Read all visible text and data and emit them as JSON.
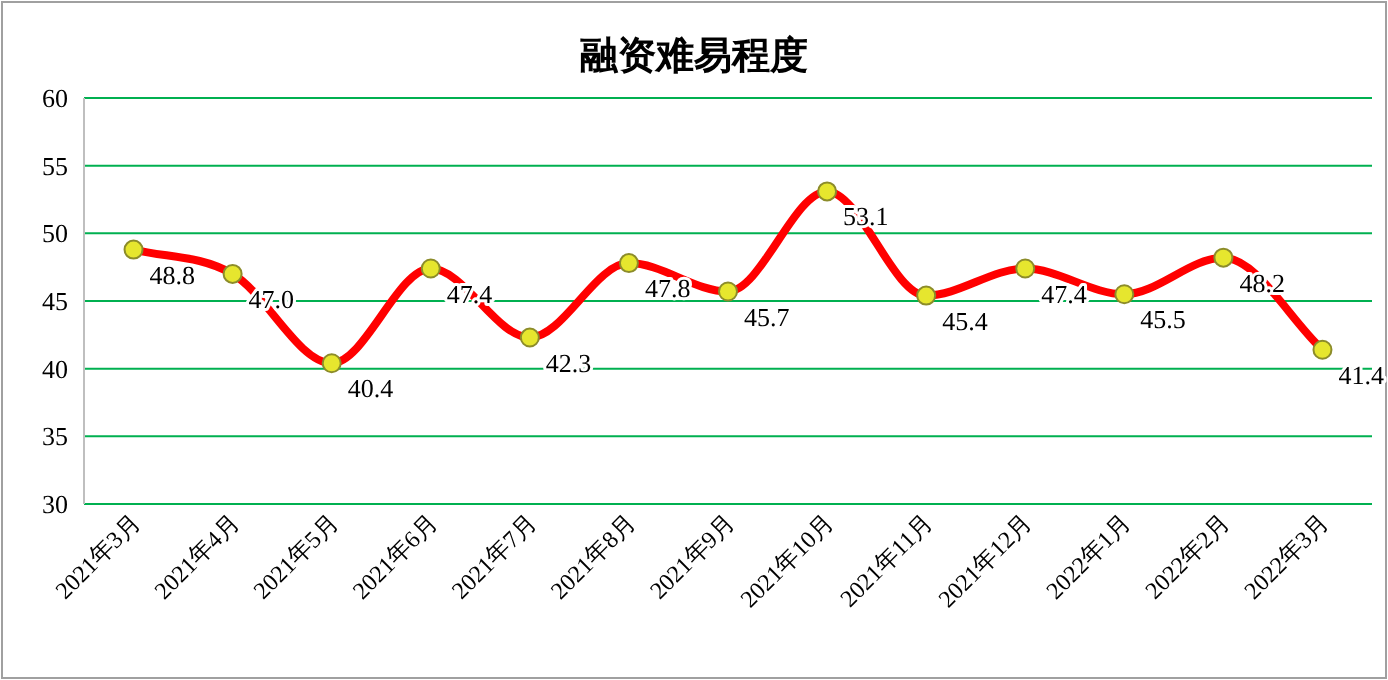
{
  "chart_data": {
    "type": "line",
    "title": "融资难易程度",
    "categories": [
      "2021年3月",
      "2021年4月",
      "2021年5月",
      "2021年6月",
      "2021年7月",
      "2021年8月",
      "2021年9月",
      "2021年10月",
      "2021年11月",
      "2021年12月",
      "2022年1月",
      "2022年2月",
      "2022年3月"
    ],
    "values": [
      48.8,
      47.0,
      40.4,
      47.4,
      42.3,
      47.8,
      45.7,
      53.1,
      45.4,
      47.4,
      45.5,
      48.2,
      41.4
    ],
    "color": "#ff0000",
    "ylim": [
      30,
      60
    ],
    "yticks": [
      30,
      35,
      40,
      45,
      50,
      55,
      60
    ],
    "value_labels": [
      "48.8",
      "47.0",
      "40.4",
      "47.4",
      "42.3",
      "47.8",
      "45.7",
      "53.1",
      "45.4",
      "47.4",
      "45.5",
      "48.2",
      "41.4"
    ],
    "grid": "y",
    "marker": "circle",
    "line_style": "solid"
  }
}
